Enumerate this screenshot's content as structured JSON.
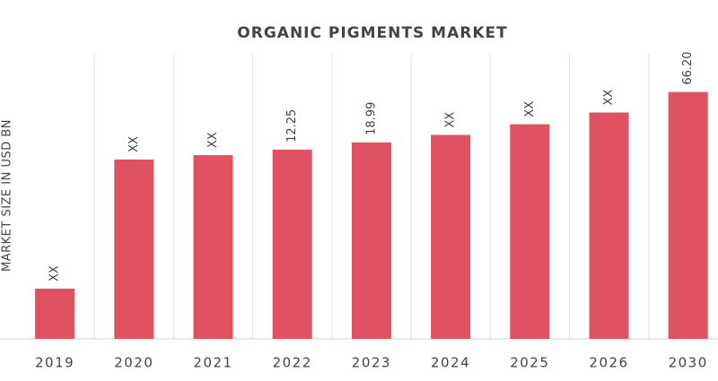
{
  "chart_data": {
    "type": "bar",
    "title": "ORGANIC PIGMENTS MARKET",
    "y_label": "MARKET SIZE IN USD BN",
    "categories": [
      "2019",
      "2020",
      "2021",
      "2022",
      "2023",
      "2024",
      "2025",
      "2026",
      "2030"
    ],
    "values": [
      -118,
      3,
      7,
      12.25,
      18.99,
      26,
      36,
      47,
      66.2
    ],
    "value_labels": [
      "XX",
      "XX",
      "XX",
      "12.25",
      "18.99",
      "XX",
      "XX",
      "XX",
      "66.20"
    ],
    "color": "#e05162",
    "ylim": [
      -165,
      102
    ]
  }
}
